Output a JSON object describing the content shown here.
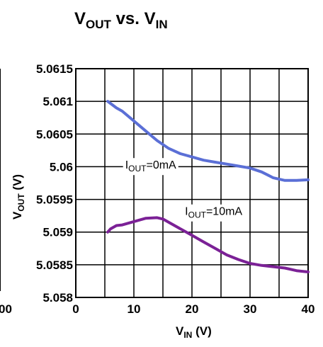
{
  "chart_data": {
    "type": "line",
    "title": {
      "main": "V",
      "main_sub": "OUT",
      "mid": " vs. V",
      "tail_sub": "IN"
    },
    "xlabel": {
      "main": "V",
      "sub": "IN",
      "unit": " (V)"
    },
    "ylabel": {
      "main": "V",
      "sub": "OUT",
      "unit": " (V)"
    },
    "xlim": [
      0,
      40
    ],
    "ylim": [
      5.058,
      5.0615
    ],
    "xticks": [
      0,
      10,
      20,
      30,
      40
    ],
    "xtick_labels": [
      "0",
      "10",
      "20",
      "30",
      "40"
    ],
    "yticks": [
      5.058,
      5.0585,
      5.059,
      5.0595,
      5.06,
      5.0605,
      5.061,
      5.0615
    ],
    "ytick_labels": [
      "5.058",
      "5.0585",
      "5.059",
      "5.0595",
      "5.06",
      "5.0605",
      "5.061",
      "5.0615"
    ],
    "grid": true,
    "series": [
      {
        "name": "IOUT=0mA",
        "color": "#5B6FD6",
        "x": [
          5.5,
          7,
          8,
          10,
          12,
          14,
          16,
          18,
          20,
          22,
          24,
          26,
          28,
          30,
          32,
          34,
          36,
          38,
          40
        ],
        "y": [
          5.061,
          5.0609,
          5.06085,
          5.0607,
          5.06055,
          5.0604,
          5.06028,
          5.0602,
          5.06015,
          5.0601,
          5.06007,
          5.06004,
          5.06001,
          5.05998,
          5.05992,
          5.05983,
          5.05979,
          5.05979,
          5.0598
        ]
      },
      {
        "name": "IOUT=10mA",
        "color": "#7B2196",
        "x": [
          5.5,
          6,
          7,
          8,
          10,
          12,
          14,
          15,
          16,
          18,
          20,
          22,
          24,
          26,
          28,
          30,
          32,
          34,
          36,
          38,
          40
        ],
        "y": [
          5.059,
          5.05905,
          5.0591,
          5.05911,
          5.05916,
          5.05921,
          5.05922,
          5.0592,
          5.05915,
          5.05905,
          5.05895,
          5.05885,
          5.05875,
          5.05865,
          5.05858,
          5.05852,
          5.05849,
          5.05847,
          5.05845,
          5.05841,
          5.05839
        ]
      }
    ],
    "annotations": [
      {
        "main": "I",
        "sub": "OUT",
        "tail": "=0mA",
        "x": 8.5,
        "y": 5.05997
      },
      {
        "main": "I",
        "sub": "OUT",
        "tail": "=10mA",
        "x": 18.8,
        "y": 5.05926
      }
    ],
    "partial_left_label": "00"
  }
}
